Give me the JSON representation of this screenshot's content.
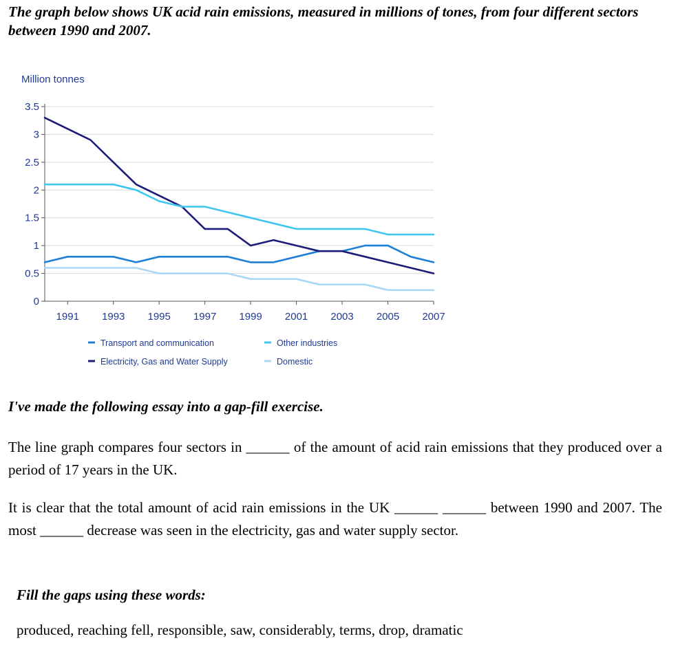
{
  "title": "The graph below shows UK acid rain emissions, measured in millions of tones, from four different sectors between 1990 and 2007.",
  "essay_heading": "I've made the following essay into a gap-fill exercise.",
  "paragraphs": [
    "The line graph compares four sectors in ______ of the amount of acid rain emissions that they produced over a period of 17 years in the UK.",
    "It is clear that the total amount of acid rain emissions in the UK ______ ______ between 1990 and 2007. The most ______ decrease was seen in the electricity, gas and water supply sector."
  ],
  "fill_heading": "Fill the gaps using these words:",
  "word_list": "produced, reaching fell, responsible, saw, considerably, terms, drop, dramatic",
  "chart_data": {
    "type": "line",
    "ylabel": "Million tonnes",
    "xlim": [
      1990,
      2007
    ],
    "ylim": [
      0,
      3.5
    ],
    "y_ticks": [
      "0",
      "0.5",
      "1",
      "1.5",
      "2",
      "2.5",
      "3",
      "3.5"
    ],
    "x_ticks": [
      "1991",
      "1993",
      "1995",
      "1997",
      "1999",
      "2001",
      "2003",
      "2005",
      "2007"
    ],
    "grid": true,
    "legend_position": "bottom",
    "x": [
      1990,
      1991,
      1992,
      1993,
      1994,
      1995,
      1996,
      1997,
      1998,
      1999,
      2000,
      2001,
      2002,
      2003,
      2004,
      2005,
      2006,
      2007
    ],
    "series": [
      {
        "name": "Transport and communication",
        "color": "#1e7fd6",
        "values": [
          0.7,
          0.8,
          0.8,
          0.8,
          0.7,
          0.8,
          0.8,
          0.8,
          0.8,
          0.7,
          0.7,
          0.8,
          0.9,
          0.9,
          1.0,
          1.0,
          0.8,
          0.7
        ]
      },
      {
        "name": "Electricity, Gas and Water Supply",
        "color": "#1c1c78",
        "values": [
          3.3,
          3.1,
          2.9,
          2.5,
          2.1,
          1.9,
          1.7,
          1.3,
          1.3,
          1.0,
          1.1,
          1.0,
          0.9,
          0.9,
          0.8,
          0.7,
          0.6,
          0.5
        ]
      },
      {
        "name": "Other industries",
        "color": "#3ec6ef",
        "values": [
          2.1,
          2.1,
          2.1,
          2.1,
          2.0,
          1.8,
          1.7,
          1.7,
          1.6,
          1.5,
          1.4,
          1.3,
          1.3,
          1.3,
          1.3,
          1.2,
          1.2,
          1.2
        ]
      },
      {
        "name": "Domestic",
        "color": "#a9d8f5",
        "values": [
          0.6,
          0.6,
          0.6,
          0.6,
          0.6,
          0.5,
          0.5,
          0.5,
          0.5,
          0.4,
          0.4,
          0.4,
          0.3,
          0.3,
          0.3,
          0.2,
          0.2,
          0.2
        ]
      }
    ],
    "legend_order": [
      0,
      2,
      1,
      3
    ]
  }
}
